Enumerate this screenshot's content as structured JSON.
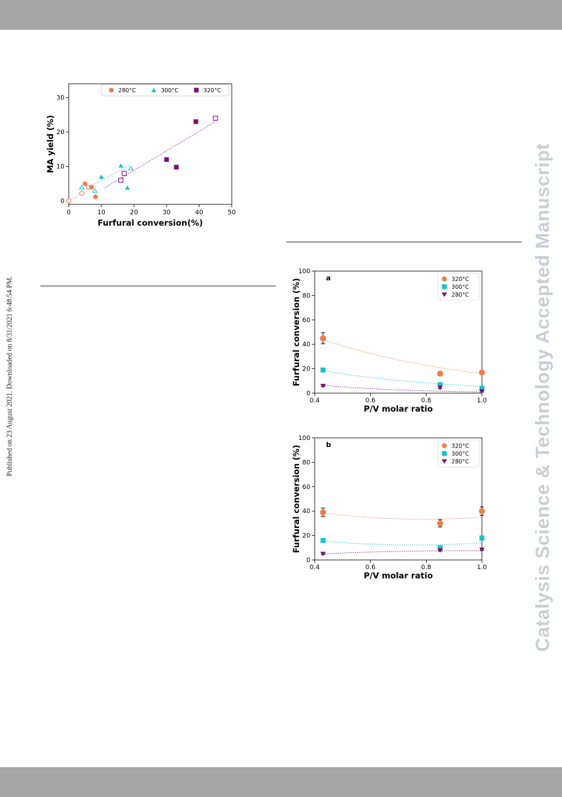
{
  "page": {
    "side_text": "Published on 23 August 2021. Downloaded on 8/31/2021 6:48:54 PM.",
    "watermark": "Catalysis Science & Technology Accepted Manuscript"
  },
  "colors": {
    "c280": "#f07d48",
    "c300": "#17c3cc",
    "c320": "#7a127a"
  },
  "chart_data": [
    {
      "type": "scatter",
      "xlabel": "Furfural conversion(%)",
      "ylabel": "MA yield (%)",
      "xlim": [
        0,
        50
      ],
      "ylim": [
        -1,
        34
      ],
      "xticks": [
        "0",
        "10",
        "20",
        "30",
        "40",
        "50"
      ],
      "yticks": [
        "0",
        "10",
        "20",
        "30"
      ],
      "legend": {
        "position": "top-right",
        "entries": [
          "280°C",
          "300°C",
          "320°C"
        ]
      },
      "series": [
        {
          "name": "280°C",
          "marker": "circle",
          "color": "#f07d48",
          "filled": [
            [
              5,
              5
            ],
            [
              7,
              4
            ],
            [
              8.2,
              1.2
            ]
          ],
          "open": [
            [
              0,
              0
            ],
            [
              4,
              2.2
            ],
            [
              6,
              4
            ]
          ],
          "trend": [
            [
              0,
              0
            ],
            [
              8.5,
              4.5
            ]
          ]
        },
        {
          "name": "300°C",
          "marker": "triangle",
          "color": "#17c3cc",
          "filled": [
            [
              10,
              7
            ],
            [
              16,
              10.2
            ],
            [
              18,
              3.8
            ]
          ],
          "open": [
            [
              4,
              4
            ],
            [
              8,
              3
            ],
            [
              19,
              9.5
            ]
          ],
          "trend": [
            [
              4,
              3
            ],
            [
              19,
              10.5
            ]
          ]
        },
        {
          "name": "320°C",
          "marker": "square",
          "color": "#7a127a",
          "filled": [
            [
              30,
              12
            ],
            [
              33,
              9.8
            ],
            [
              39,
              23
            ]
          ],
          "open": [
            [
              16,
              6
            ],
            [
              17,
              8
            ],
            [
              45,
              24
            ]
          ],
          "trend": [
            [
              11,
              3.8
            ],
            [
              45,
              23
            ]
          ]
        }
      ]
    },
    {
      "type": "scatter",
      "panel_label": "a",
      "xlabel": "P/V molar ratio",
      "ylabel": "Furfural conversion (%)",
      "xlim": [
        0.4,
        1.0
      ],
      "ylim": [
        0,
        100
      ],
      "xticks": [
        "0.4",
        "0.6",
        "0.8",
        "1.0"
      ],
      "yticks": [
        "0",
        "20",
        "40",
        "60",
        "80",
        "100"
      ],
      "legend": {
        "position": "top-right",
        "entries": [
          "320°C",
          "300°C",
          "280°C"
        ]
      },
      "series": [
        {
          "name": "320°C",
          "marker": "circle",
          "color": "#f07d48",
          "x": [
            0.43,
            0.85,
            1.0
          ],
          "y": [
            45,
            16,
            17
          ],
          "err": [
            4.5,
            1.5,
            1.5
          ],
          "fit": [
            44,
            16
          ]
        },
        {
          "name": "300°C",
          "marker": "square",
          "color": "#17c3cc",
          "x": [
            0.43,
            0.85,
            1.0
          ],
          "y": [
            19,
            7,
            4
          ],
          "err": [
            1.5,
            1.2,
            1.0
          ],
          "fit": [
            18.5,
            5.5
          ]
        },
        {
          "name": "280°C",
          "marker": "triangle-down",
          "color": "#7a127a",
          "x": [
            0.43,
            0.85,
            1.0
          ],
          "y": [
            6,
            4.5,
            1.5
          ],
          "err": [
            0.5,
            0.8,
            0.5
          ],
          "fit": [
            6.5,
            1
          ]
        }
      ]
    },
    {
      "type": "scatter",
      "panel_label": "b",
      "xlabel": "P/V molar ratio",
      "ylabel": "Furfural conversion (%)",
      "xlim": [
        0.4,
        1.0
      ],
      "ylim": [
        0,
        100
      ],
      "xticks": [
        "0.4",
        "0.6",
        "0.8",
        "1.0"
      ],
      "yticks": [
        "0",
        "20",
        "40",
        "60",
        "80",
        "100"
      ],
      "legend": {
        "position": "top-right",
        "entries": [
          "320°C",
          "300°C",
          "280°C"
        ]
      },
      "series": [
        {
          "name": "320°C",
          "marker": "circle",
          "color": "#f07d48",
          "x": [
            0.43,
            0.85,
            1.0
          ],
          "y": [
            39,
            30,
            40
          ],
          "err": [
            3.5,
            3.0,
            3.5
          ],
          "fit": [
            38.5,
            33.5,
            35
          ]
        },
        {
          "name": "300°C",
          "marker": "square",
          "color": "#17c3cc",
          "x": [
            0.43,
            0.85,
            1.0
          ],
          "y": [
            16,
            10,
            18
          ],
          "err": [
            1.2,
            1.0,
            1.5
          ],
          "fit": [
            15.5,
            12.5,
            14
          ]
        },
        {
          "name": "280°C",
          "marker": "triangle-down",
          "color": "#7a127a",
          "x": [
            0.43,
            0.85,
            1.0
          ],
          "y": [
            5,
            8,
            8.5
          ],
          "err": [
            0.5,
            0.8,
            0.6
          ],
          "fit": [
            5,
            7.5,
            7.5
          ]
        }
      ]
    }
  ]
}
